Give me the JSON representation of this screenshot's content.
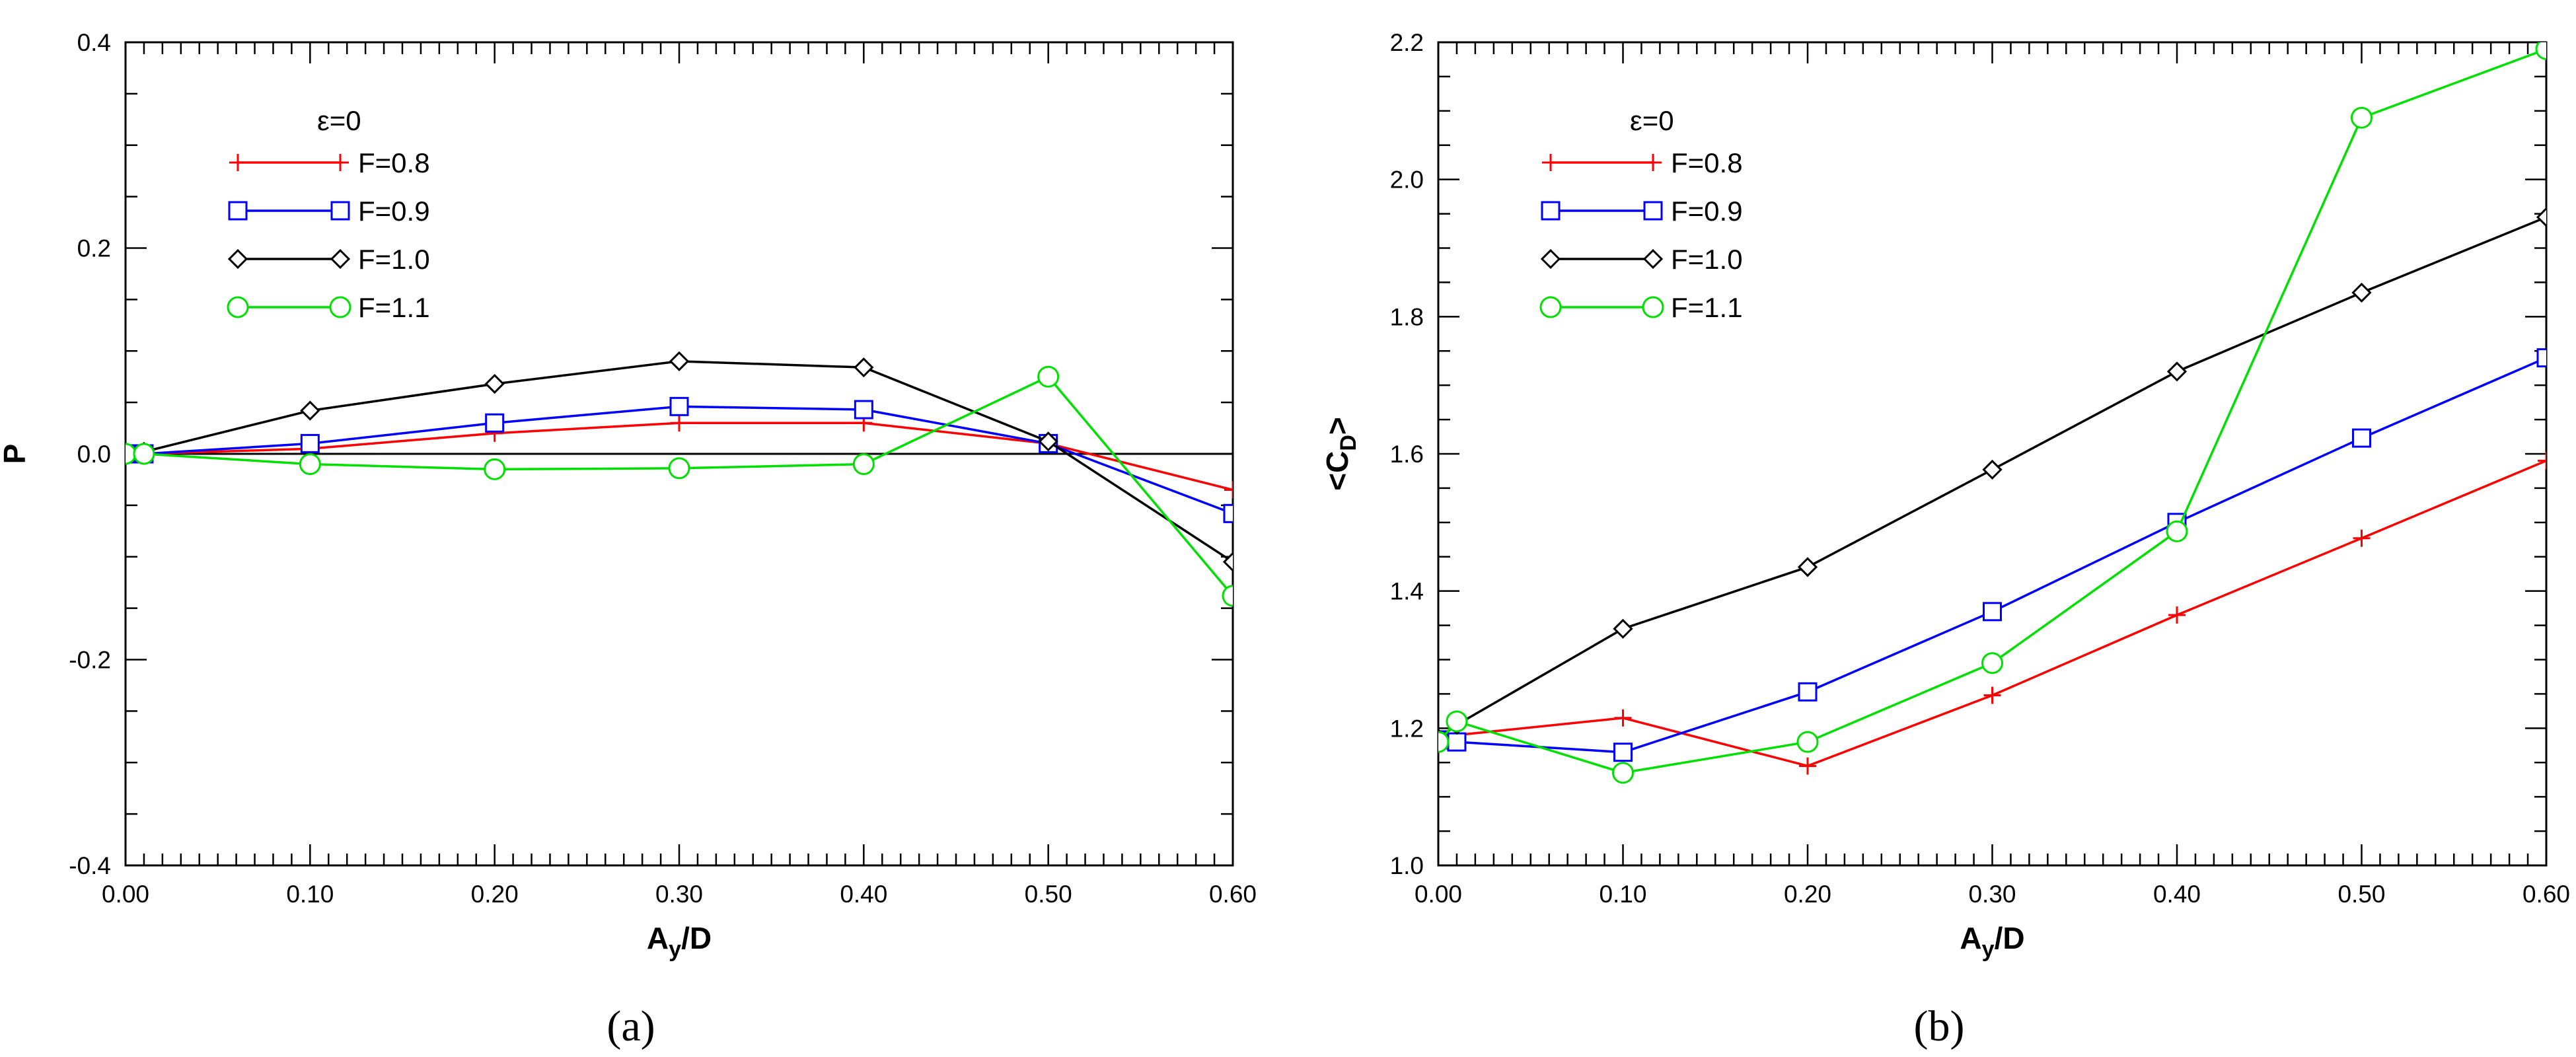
{
  "chart_data": [
    {
      "type": "line",
      "panel_label": "(a)",
      "xlabel_main": "A",
      "xlabel_sub": "y",
      "xlabel_rest": "/D",
      "ylabel": "P",
      "xlim": [
        0.0,
        0.6
      ],
      "ylim": [
        -0.4,
        0.4
      ],
      "x_ticks": [
        0.0,
        0.1,
        0.2,
        0.3,
        0.4,
        0.5,
        0.6
      ],
      "x_tick_labels": [
        "0.00",
        "0.10",
        "0.20",
        "0.30",
        "0.40",
        "0.50",
        "0.60"
      ],
      "y_ticks": [
        -0.4,
        -0.2,
        0.0,
        0.2,
        0.4
      ],
      "y_tick_labels": [
        "-0.4",
        "-0.2",
        "0.0",
        "0.2",
        "0.4"
      ],
      "reference_line_y": 0.0,
      "legend_title": "ε=0",
      "legend_position": "top-left",
      "series": [
        {
          "name": "F=0.8",
          "color": "#ff0000",
          "marker": "plus",
          "x": [
            0.0,
            0.01,
            0.1,
            0.2,
            0.3,
            0.4,
            0.5,
            0.6
          ],
          "y": [
            0.0,
            0.0,
            0.005,
            0.02,
            0.03,
            0.03,
            0.01,
            -0.035
          ]
        },
        {
          "name": "F=0.9",
          "color": "#0000ff",
          "marker": "square",
          "x": [
            0.0,
            0.01,
            0.1,
            0.2,
            0.3,
            0.4,
            0.5,
            0.6
          ],
          "y": [
            0.0,
            0.0,
            0.01,
            0.03,
            0.046,
            0.043,
            0.01,
            -0.058
          ]
        },
        {
          "name": "F=1.0",
          "color": "#000000",
          "marker": "diamond",
          "x": [
            0.0,
            0.01,
            0.1,
            0.2,
            0.3,
            0.4,
            0.5,
            0.6
          ],
          "y": [
            0.0,
            0.002,
            0.042,
            0.068,
            0.09,
            0.084,
            0.012,
            -0.105
          ]
        },
        {
          "name": "F=1.1",
          "color": "#00e000",
          "marker": "circle",
          "x": [
            0.0,
            0.01,
            0.1,
            0.2,
            0.3,
            0.4,
            0.5,
            0.6
          ],
          "y": [
            0.0,
            0.0,
            -0.01,
            -0.015,
            -0.014,
            -0.01,
            0.075,
            -0.138
          ]
        }
      ]
    },
    {
      "type": "line",
      "panel_label": "(b)",
      "xlabel_main": "A",
      "xlabel_sub": "y",
      "xlabel_rest": "/D",
      "ylabel_main": "<C",
      "ylabel_sub": "D",
      "ylabel_rest": ">",
      "xlim": [
        0.0,
        0.6
      ],
      "ylim": [
        1.0,
        2.2
      ],
      "x_ticks": [
        0.0,
        0.1,
        0.2,
        0.3,
        0.4,
        0.5,
        0.6
      ],
      "x_tick_labels": [
        "0.00",
        "0.10",
        "0.20",
        "0.30",
        "0.40",
        "0.50",
        "0.60"
      ],
      "y_ticks": [
        1.0,
        1.2,
        1.4,
        1.6,
        1.8,
        2.0,
        2.2
      ],
      "y_tick_labels": [
        "1.0",
        "1.2",
        "1.4",
        "1.6",
        "1.8",
        "2.0",
        "2.2"
      ],
      "legend_title": "ε=0",
      "legend_position": "top-left",
      "series": [
        {
          "name": "F=0.8",
          "color": "#ff0000",
          "marker": "plus",
          "x": [
            0.0,
            0.01,
            0.1,
            0.2,
            0.3,
            0.4,
            0.5,
            0.6
          ],
          "y": [
            1.18,
            1.19,
            1.215,
            1.145,
            1.248,
            1.365,
            1.477,
            1.59
          ]
        },
        {
          "name": "F=0.9",
          "color": "#0000ff",
          "marker": "square",
          "x": [
            0.0,
            0.01,
            0.1,
            0.2,
            0.3,
            0.4,
            0.5,
            0.6
          ],
          "y": [
            1.183,
            1.18,
            1.165,
            1.253,
            1.37,
            1.5,
            1.623,
            1.74
          ]
        },
        {
          "name": "F=1.0",
          "color": "#000000",
          "marker": "diamond",
          "x": [
            0.0,
            0.01,
            0.1,
            0.2,
            0.3,
            0.4,
            0.5,
            0.6
          ],
          "y": [
            1.185,
            1.205,
            1.345,
            1.435,
            1.577,
            1.72,
            1.835,
            1.945
          ]
        },
        {
          "name": "F=1.1",
          "color": "#00e000",
          "marker": "circle",
          "x": [
            0.0,
            0.01,
            0.1,
            0.2,
            0.3,
            0.4,
            0.5,
            0.6
          ],
          "y": [
            1.18,
            1.21,
            1.135,
            1.18,
            1.295,
            1.487,
            2.09,
            2.19
          ]
        }
      ]
    }
  ]
}
